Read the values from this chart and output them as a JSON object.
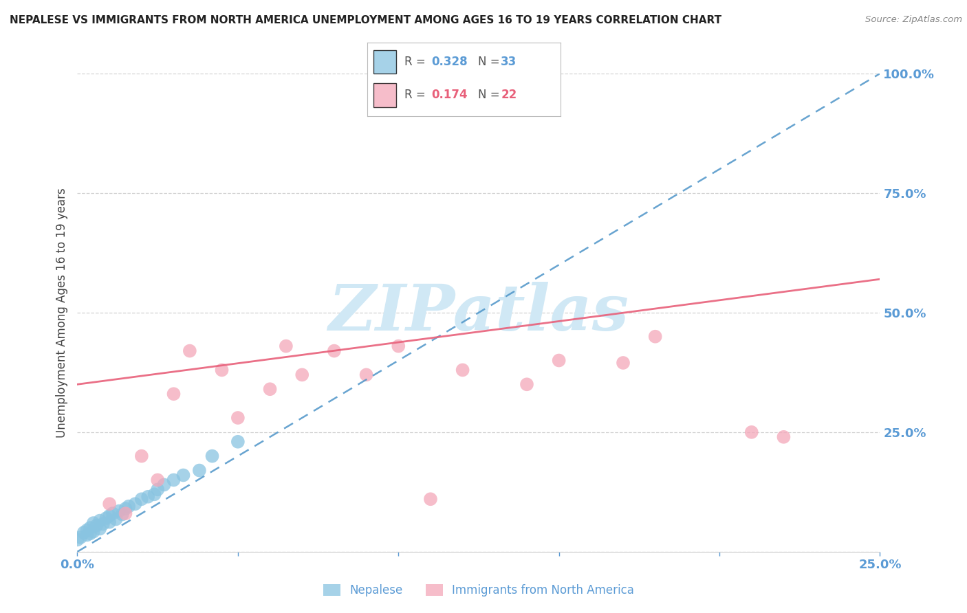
{
  "title": "NEPALESE VS IMMIGRANTS FROM NORTH AMERICA UNEMPLOYMENT AMONG AGES 16 TO 19 YEARS CORRELATION CHART",
  "source": "Source: ZipAtlas.com",
  "ylabel": "Unemployment Among Ages 16 to 19 years",
  "xlim": [
    0,
    0.25
  ],
  "ylim": [
    0,
    1.0
  ],
  "yticks": [
    0.0,
    0.25,
    0.5,
    0.75,
    1.0
  ],
  "ytick_labels": [
    "",
    "25.0%",
    "50.0%",
    "75.0%",
    "100.0%"
  ],
  "xticks": [
    0.0,
    0.05,
    0.1,
    0.15,
    0.2,
    0.25
  ],
  "xtick_labels": [
    "0.0%",
    "",
    "",
    "",
    "",
    "25.0%"
  ],
  "nepalese_R": 0.328,
  "nepalese_N": 33,
  "immigrants_R": 0.174,
  "immigrants_N": 22,
  "nepalese_color": "#89c4e1",
  "immigrants_color": "#f4a7b9",
  "nepalese_line_color": "#4d94c8",
  "immigrants_line_color": "#e8607a",
  "nepalese_x": [
    0.0,
    0.001,
    0.002,
    0.003,
    0.003,
    0.004,
    0.004,
    0.005,
    0.005,
    0.006,
    0.007,
    0.007,
    0.008,
    0.009,
    0.01,
    0.01,
    0.011,
    0.012,
    0.013,
    0.014,
    0.015,
    0.016,
    0.018,
    0.02,
    0.022,
    0.024,
    0.025,
    0.027,
    0.03,
    0.033,
    0.038,
    0.042,
    0.05
  ],
  "nepalese_y": [
    0.025,
    0.03,
    0.04,
    0.035,
    0.045,
    0.038,
    0.05,
    0.042,
    0.06,
    0.055,
    0.048,
    0.065,
    0.058,
    0.07,
    0.062,
    0.075,
    0.08,
    0.068,
    0.085,
    0.078,
    0.09,
    0.095,
    0.1,
    0.11,
    0.115,
    0.12,
    0.13,
    0.14,
    0.15,
    0.16,
    0.17,
    0.2,
    0.23
  ],
  "immigrants_x": [
    0.01,
    0.015,
    0.02,
    0.025,
    0.03,
    0.035,
    0.045,
    0.05,
    0.06,
    0.065,
    0.07,
    0.08,
    0.09,
    0.1,
    0.11,
    0.12,
    0.14,
    0.15,
    0.17,
    0.18,
    0.21,
    0.22
  ],
  "immigrants_y": [
    0.1,
    0.08,
    0.2,
    0.15,
    0.33,
    0.42,
    0.38,
    0.28,
    0.34,
    0.43,
    0.37,
    0.42,
    0.37,
    0.43,
    0.11,
    0.38,
    0.35,
    0.4,
    0.395,
    0.45,
    0.25,
    0.24
  ],
  "background_color": "#ffffff",
  "grid_color": "#cccccc",
  "title_color": "#222222",
  "axis_label_color": "#444444",
  "tick_color": "#5b9bd5",
  "watermark": "ZIPatlas",
  "watermark_color": "#d0e8f5",
  "legend_label_color": "#5b9bd5",
  "legend_pink_color": "#e8607a"
}
